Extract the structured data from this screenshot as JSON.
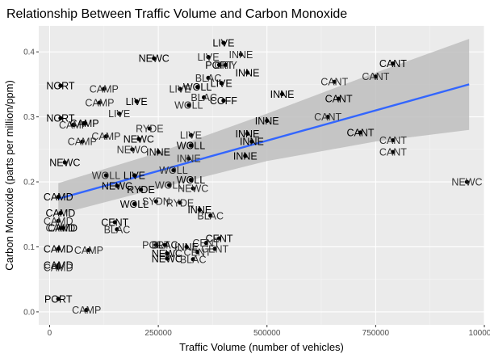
{
  "chart_data": {
    "type": "scatter",
    "title": "Relationship Between Traffic Volume and Carbon Monoxide",
    "xlabel": "Traffic Volume (number of vehicles)",
    "ylabel": "Carbon Monoxide (parts per million/ppm)",
    "xlim": [
      -25000,
      1000000
    ],
    "ylim": [
      -0.02,
      0.44
    ],
    "x_ticks": [
      0,
      250000,
      500000,
      750000,
      1000000
    ],
    "x_tick_labels": [
      "0",
      "250000",
      "500000",
      "750000",
      "1000000"
    ],
    "y_ticks": [
      0.0,
      0.1,
      0.2,
      0.3,
      0.4
    ],
    "y_tick_labels": [
      "0.0",
      "0.1",
      "0.2",
      "0.3",
      "0.4"
    ],
    "grid": true,
    "panel_background": "#EBEBEB",
    "point_color": "#000000",
    "label_colors": [
      "#000000",
      "#333333"
    ],
    "smooth": {
      "method": "linear",
      "color": "#3366FF",
      "ribbon_color": "#BEBEBE",
      "line": [
        [
          20000,
          0.174
        ],
        [
          965000,
          0.35
        ]
      ],
      "ribbon_upper": [
        [
          20000,
          0.198
        ],
        [
          250000,
          0.245
        ],
        [
          500000,
          0.305
        ],
        [
          750000,
          0.368
        ],
        [
          965000,
          0.42
        ]
      ],
      "ribbon_lower": [
        [
          20000,
          0.15
        ],
        [
          250000,
          0.19
        ],
        [
          500000,
          0.232
        ],
        [
          750000,
          0.262
        ],
        [
          965000,
          0.28
        ]
      ]
    },
    "points": [
      {
        "label": "LIVE",
        "x": 400000,
        "y": 0.414
      },
      {
        "label": "INNE",
        "x": 440000,
        "y": 0.396
      },
      {
        "label": "NEWC",
        "x": 240000,
        "y": 0.39
      },
      {
        "label": "LIVE",
        "x": 365000,
        "y": 0.392
      },
      {
        "label": "PORT",
        "x": 390000,
        "y": 0.38
      },
      {
        "label": "CITY",
        "x": 405000,
        "y": 0.38
      },
      {
        "label": "CANT",
        "x": 790000,
        "y": 0.382
      },
      {
        "label": "CANT",
        "x": 750000,
        "y": 0.362
      },
      {
        "label": "INNE",
        "x": 455000,
        "y": 0.368
      },
      {
        "label": "BLAC",
        "x": 365000,
        "y": 0.36
      },
      {
        "label": "LIVE",
        "x": 395000,
        "y": 0.352
      },
      {
        "label": "CANT",
        "x": 655000,
        "y": 0.354
      },
      {
        "label": "NORT",
        "x": 25000,
        "y": 0.348
      },
      {
        "label": "CAMP",
        "x": 125000,
        "y": 0.343
      },
      {
        "label": "WOLL",
        "x": 340000,
        "y": 0.346
      },
      {
        "label": "LIVE",
        "x": 300000,
        "y": 0.343
      },
      {
        "label": "INNE",
        "x": 535000,
        "y": 0.335
      },
      {
        "label": "BLAC",
        "x": 355000,
        "y": 0.33
      },
      {
        "label": "COFF",
        "x": 400000,
        "y": 0.325
      },
      {
        "label": "CAMP",
        "x": 115000,
        "y": 0.322
      },
      {
        "label": "LIVE",
        "x": 200000,
        "y": 0.324
      },
      {
        "label": "WOLL",
        "x": 320000,
        "y": 0.318
      },
      {
        "label": "CANT",
        "x": 665000,
        "y": 0.328
      },
      {
        "label": "LIVE",
        "x": 160000,
        "y": 0.305
      },
      {
        "label": "NORT",
        "x": 25000,
        "y": 0.298
      },
      {
        "label": "CAMP",
        "x": 55000,
        "y": 0.288
      },
      {
        "label": "CAMP",
        "x": 80000,
        "y": 0.29
      },
      {
        "label": "CANT",
        "x": 640000,
        "y": 0.3
      },
      {
        "label": "INNE",
        "x": 500000,
        "y": 0.294
      },
      {
        "label": "RYDE",
        "x": 230000,
        "y": 0.282
      },
      {
        "label": "INNE",
        "x": 455000,
        "y": 0.274
      },
      {
        "label": "CAMP",
        "x": 130000,
        "y": 0.27
      },
      {
        "label": "NEWC",
        "x": 205000,
        "y": 0.266
      },
      {
        "label": "LIVE",
        "x": 325000,
        "y": 0.272
      },
      {
        "label": "CANT",
        "x": 715000,
        "y": 0.276
      },
      {
        "label": "CAMP",
        "x": 75000,
        "y": 0.262
      },
      {
        "label": "INNE",
        "x": 465000,
        "y": 0.262
      },
      {
        "label": "CANT",
        "x": 790000,
        "y": 0.264
      },
      {
        "label": "WOLL",
        "x": 325000,
        "y": 0.256
      },
      {
        "label": "NEWC",
        "x": 190000,
        "y": 0.25
      },
      {
        "label": "INNE",
        "x": 250000,
        "y": 0.246
      },
      {
        "label": "CANT",
        "x": 790000,
        "y": 0.246
      },
      {
        "label": "INNE",
        "x": 450000,
        "y": 0.24
      },
      {
        "label": "INNE",
        "x": 320000,
        "y": 0.236
      },
      {
        "label": "NEWC",
        "x": 35000,
        "y": 0.23
      },
      {
        "label": "WOLL",
        "x": 285000,
        "y": 0.218
      },
      {
        "label": "LIVE",
        "x": 195000,
        "y": 0.21
      },
      {
        "label": "WOLL",
        "x": 130000,
        "y": 0.21
      },
      {
        "label": "WOLL",
        "x": 325000,
        "y": 0.203
      },
      {
        "label": "NEWC",
        "x": 960000,
        "y": 0.2
      },
      {
        "label": "NEWC",
        "x": 155000,
        "y": 0.194
      },
      {
        "label": "WOLL",
        "x": 275000,
        "y": 0.195
      },
      {
        "label": "RYDE",
        "x": 210000,
        "y": 0.188
      },
      {
        "label": "NEWC",
        "x": 330000,
        "y": 0.19
      },
      {
        "label": "CAMD",
        "x": 20000,
        "y": 0.177
      },
      {
        "label": "SYDN",
        "x": 245000,
        "y": 0.17
      },
      {
        "label": "WOLL",
        "x": 195000,
        "y": 0.166
      },
      {
        "label": "RYDE",
        "x": 300000,
        "y": 0.168
      },
      {
        "label": "INNE",
        "x": 345000,
        "y": 0.157
      },
      {
        "label": "BLAC",
        "x": 370000,
        "y": 0.148
      },
      {
        "label": "CAMD",
        "x": 25000,
        "y": 0.152
      },
      {
        "label": "CAMD",
        "x": 20000,
        "y": 0.14
      },
      {
        "label": "CENT",
        "x": 150000,
        "y": 0.138
      },
      {
        "label": "CAMD",
        "x": 25000,
        "y": 0.129
      },
      {
        "label": "CAMD",
        "x": 30000,
        "y": 0.129
      },
      {
        "label": "BLAC",
        "x": 155000,
        "y": 0.127
      },
      {
        "label": "CENT",
        "x": 390000,
        "y": 0.113
      },
      {
        "label": "PORT",
        "x": 245000,
        "y": 0.103
      },
      {
        "label": "BLAC",
        "x": 265000,
        "y": 0.103
      },
      {
        "label": "CENT",
        "x": 360000,
        "y": 0.106
      },
      {
        "label": "INNE",
        "x": 315000,
        "y": 0.1
      },
      {
        "label": "CENT",
        "x": 380000,
        "y": 0.097
      },
      {
        "label": "CAMD",
        "x": 20000,
        "y": 0.097
      },
      {
        "label": "CAMP",
        "x": 90000,
        "y": 0.095
      },
      {
        "label": "NEWC",
        "x": 270000,
        "y": 0.09
      },
      {
        "label": "CENT",
        "x": 340000,
        "y": 0.092
      },
      {
        "label": "NEWC",
        "x": 270000,
        "y": 0.082
      },
      {
        "label": "BLAC",
        "x": 330000,
        "y": 0.081
      },
      {
        "label": "CAMD",
        "x": 20000,
        "y": 0.072
      },
      {
        "label": "CAMD",
        "x": 20000,
        "y": 0.068
      },
      {
        "label": "PORT",
        "x": 20000,
        "y": 0.02
      },
      {
        "label": "CAMP",
        "x": 85000,
        "y": 0.003
      }
    ]
  }
}
